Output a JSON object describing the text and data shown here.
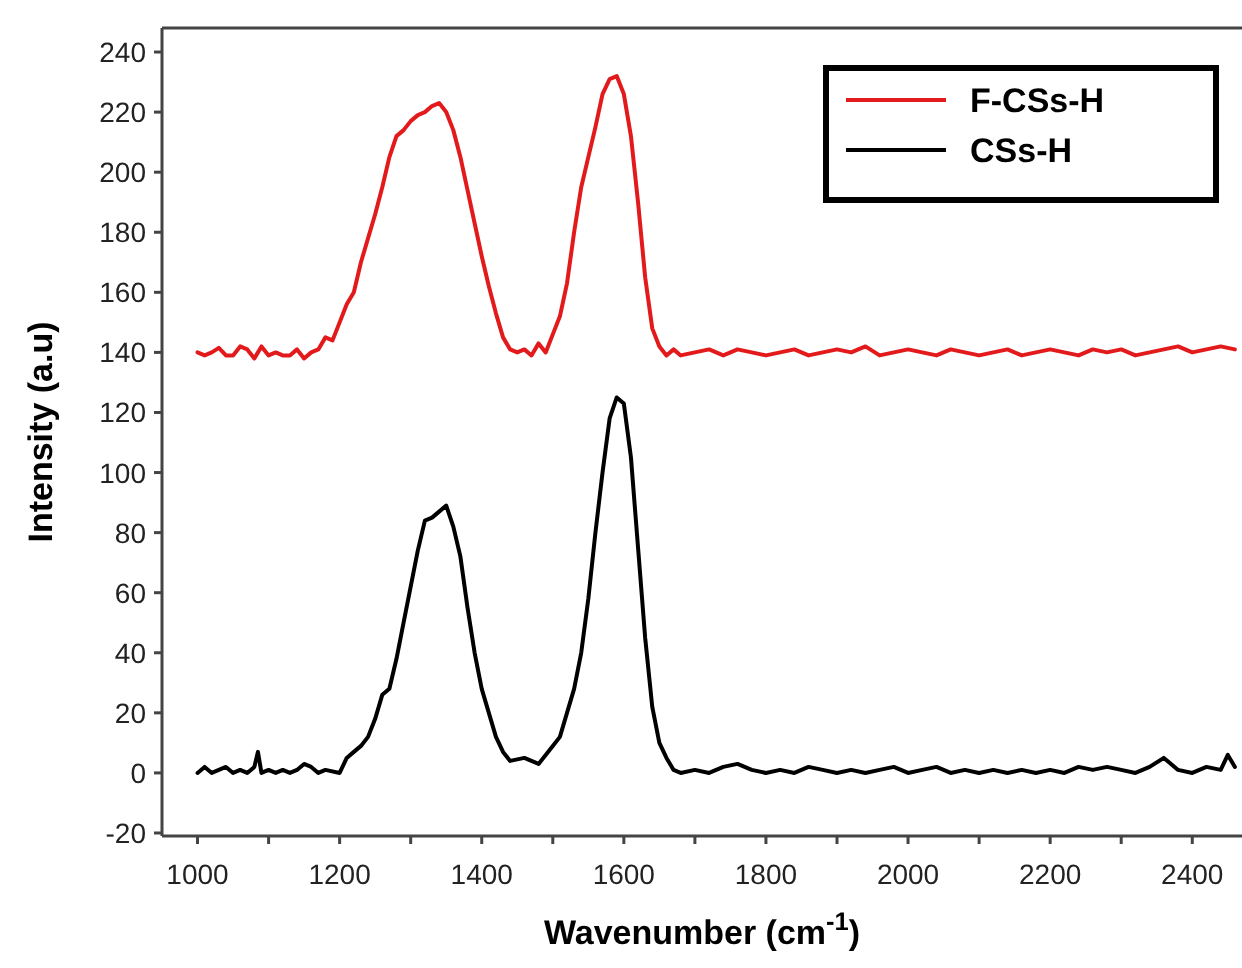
{
  "chart_data": {
    "type": "line",
    "xlabel": "Wavenumber (cm$^{-1}$)",
    "ylabel": "Intensity (a.u)",
    "xlim": [
      950,
      2470
    ],
    "ylim": [
      -21,
      248
    ],
    "xticks": [
      1000,
      {
        "value": 1100,
        "label": null
      },
      1200,
      {
        "value": 1300,
        "label": null
      },
      1400,
      {
        "value": 1500,
        "label": null
      },
      1600,
      {
        "value": 1700,
        "label": null
      },
      1800,
      {
        "value": 1900,
        "label": null
      },
      2000,
      {
        "value": 2100,
        "label": null
      },
      2200,
      {
        "value": 2300,
        "label": null
      },
      2400
    ],
    "yticks": [
      -20,
      0,
      20,
      40,
      60,
      80,
      100,
      120,
      140,
      160,
      180,
      200,
      220,
      240
    ],
    "legend": "top right",
    "grid": false,
    "marker": "none",
    "line_style": "solid",
    "series": [
      {
        "name": "F-CSs-H",
        "color": "#e31a1c",
        "x": [
          1000,
          1010,
          1020,
          1030,
          1040,
          1050,
          1060,
          1070,
          1080,
          1090,
          1100,
          1110,
          1120,
          1130,
          1140,
          1150,
          1160,
          1170,
          1180,
          1190,
          1200,
          1210,
          1220,
          1230,
          1240,
          1250,
          1260,
          1270,
          1280,
          1290,
          1300,
          1310,
          1320,
          1330,
          1340,
          1350,
          1360,
          1370,
          1380,
          1390,
          1400,
          1410,
          1420,
          1430,
          1440,
          1450,
          1460,
          1470,
          1480,
          1490,
          1500,
          1510,
          1520,
          1530,
          1540,
          1550,
          1560,
          1570,
          1580,
          1590,
          1600,
          1610,
          1620,
          1630,
          1640,
          1650,
          1660,
          1670,
          1680,
          1700,
          1720,
          1740,
          1760,
          1780,
          1800,
          1820,
          1840,
          1860,
          1880,
          1900,
          1920,
          1940,
          1960,
          1980,
          2000,
          2020,
          2040,
          2060,
          2080,
          2100,
          2120,
          2140,
          2160,
          2180,
          2200,
          2220,
          2240,
          2260,
          2280,
          2300,
          2320,
          2340,
          2360,
          2380,
          2400,
          2420,
          2440,
          2460
        ],
        "values": [
          140,
          139,
          140,
          141.5,
          139,
          139,
          142,
          141,
          138,
          142,
          139,
          140,
          139,
          139,
          141,
          138,
          140,
          141,
          145,
          144,
          150,
          156,
          160,
          170,
          178,
          186,
          195,
          205,
          212,
          214,
          217,
          219,
          220,
          222,
          223,
          220,
          214,
          205,
          194,
          183,
          172,
          162,
          153,
          145,
          141,
          140,
          141,
          139,
          143,
          140,
          146,
          152,
          163,
          180,
          195,
          205,
          215,
          226,
          231,
          232,
          226,
          212,
          190,
          165,
          148,
          142,
          139,
          141,
          139,
          140,
          141,
          139,
          141,
          140,
          139,
          140,
          141,
          139,
          140,
          141,
          140,
          142,
          139,
          140,
          141,
          140,
          139,
          141,
          140,
          139,
          140,
          141,
          139,
          140,
          141,
          140,
          139,
          141,
          140,
          141,
          139,
          140,
          141,
          142,
          140,
          141,
          142,
          141
        ]
      },
      {
        "name": "CSs-H",
        "color": "#000000",
        "x": [
          1000,
          1010,
          1020,
          1030,
          1040,
          1050,
          1060,
          1070,
          1080,
          1085,
          1090,
          1100,
          1110,
          1120,
          1130,
          1140,
          1150,
          1160,
          1170,
          1180,
          1200,
          1210,
          1220,
          1230,
          1240,
          1250,
          1260,
          1270,
          1280,
          1290,
          1300,
          1310,
          1320,
          1330,
          1340,
          1350,
          1360,
          1370,
          1380,
          1390,
          1400,
          1410,
          1420,
          1430,
          1440,
          1460,
          1480,
          1490,
          1500,
          1510,
          1520,
          1530,
          1540,
          1550,
          1560,
          1570,
          1580,
          1590,
          1600,
          1610,
          1620,
          1630,
          1640,
          1650,
          1660,
          1670,
          1680,
          1700,
          1720,
          1740,
          1760,
          1780,
          1800,
          1820,
          1840,
          1860,
          1880,
          1900,
          1920,
          1940,
          1960,
          1980,
          2000,
          2020,
          2040,
          2060,
          2080,
          2100,
          2120,
          2140,
          2160,
          2180,
          2200,
          2220,
          2240,
          2260,
          2280,
          2300,
          2320,
          2340,
          2360,
          2380,
          2400,
          2420,
          2440,
          2450,
          2460
        ],
        "values": [
          0,
          2,
          0,
          1,
          2,
          0,
          1,
          0,
          2,
          7,
          0,
          1,
          0,
          1,
          0,
          1,
          3,
          2,
          0,
          1,
          0,
          5,
          7,
          9,
          12,
          18,
          26,
          28,
          38,
          50,
          62,
          74,
          84,
          85,
          87,
          89,
          82,
          72,
          55,
          40,
          28,
          20,
          12,
          7,
          4,
          5,
          3,
          6,
          9,
          12,
          20,
          28,
          40,
          58,
          80,
          100,
          118,
          125,
          123,
          105,
          75,
          45,
          22,
          10,
          5,
          1,
          0,
          1,
          0,
          2,
          3,
          1,
          0,
          1,
          0,
          2,
          1,
          0,
          1,
          0,
          1,
          2,
          0,
          1,
          2,
          0,
          1,
          0,
          1,
          0,
          1,
          0,
          1,
          0,
          2,
          1,
          2,
          1,
          0,
          2,
          5,
          1,
          0,
          2,
          1,
          6,
          2
        ]
      }
    ]
  }
}
